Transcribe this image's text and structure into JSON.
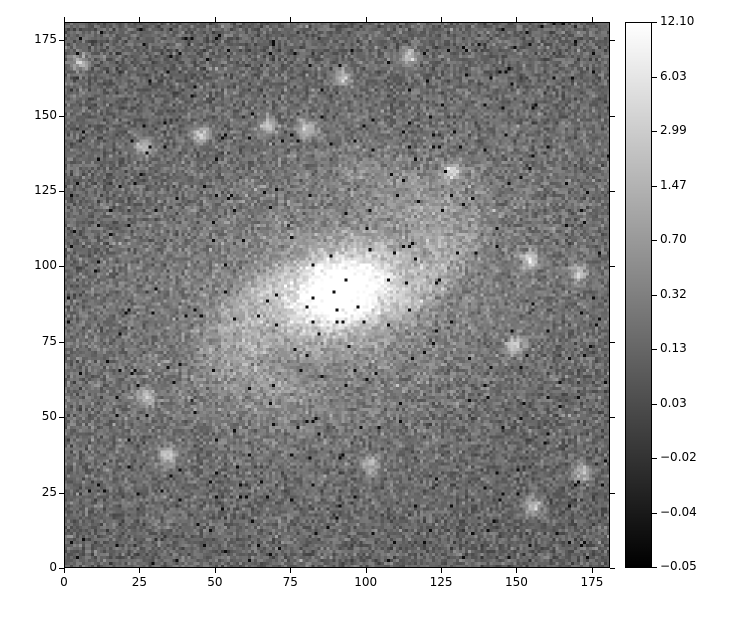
{
  "chart_data": {
    "type": "heatmap",
    "colormap": "gray",
    "xlim": [
      0,
      181
    ],
    "ylim": [
      0,
      181
    ],
    "x_ticks": [
      "0",
      "25",
      "50",
      "75",
      "100",
      "125",
      "150",
      "175"
    ],
    "y_ticks": [
      "0",
      "25",
      "50",
      "75",
      "100",
      "125",
      "150",
      "175"
    ],
    "colorbar_ticks": [
      "12.10",
      "6.03",
      "2.99",
      "1.47",
      "0.70",
      "0.32",
      "0.13",
      "0.03",
      "−0.02",
      "−0.04",
      "−0.05"
    ],
    "colorbar_range": [
      -0.05,
      12.1
    ],
    "galaxy_center": [
      91,
      91
    ],
    "point_sources": [
      [
        80,
        145
      ],
      [
        128,
        131
      ],
      [
        170,
        97
      ],
      [
        154,
        102
      ],
      [
        92,
        162
      ],
      [
        27,
        56
      ],
      [
        34,
        37
      ],
      [
        171,
        31
      ],
      [
        155,
        20
      ],
      [
        5,
        167
      ],
      [
        114,
        169
      ],
      [
        67,
        146
      ],
      [
        26,
        139
      ],
      [
        101,
        34
      ],
      [
        149,
        73
      ],
      [
        45,
        143
      ]
    ]
  }
}
